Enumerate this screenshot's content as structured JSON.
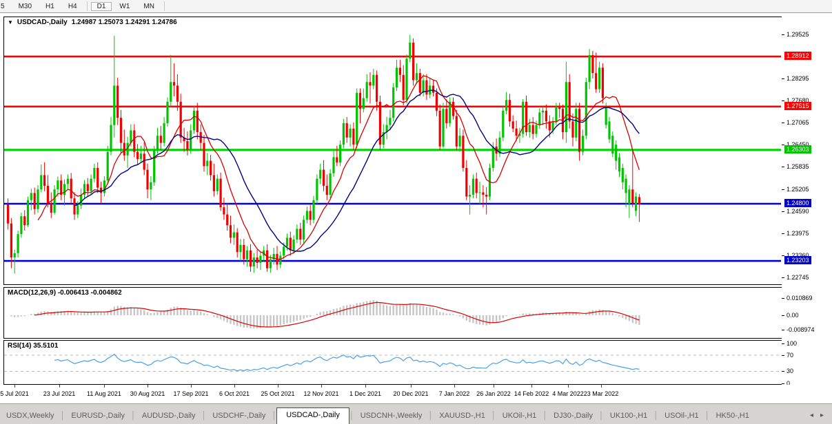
{
  "toolbar": {
    "buttons": [
      {
        "label": "5",
        "active": false,
        "partial": true
      },
      {
        "label": "M30",
        "active": false
      },
      {
        "label": "H1",
        "active": false
      },
      {
        "label": "H4",
        "active": false
      },
      {
        "label": "D1",
        "active": true
      },
      {
        "label": "W1",
        "active": false
      },
      {
        "label": "MN",
        "active": false
      }
    ]
  },
  "chart": {
    "dropdown_icon": "▼",
    "symbol_title": "USDCAD-,Daily",
    "ohlc": "1.24987 1.25073 1.24291 1.24786"
  },
  "indicators": {
    "macd_label": "MACD(12,26,9)",
    "macd_values": "-0.006413 -0.004862",
    "rsi_label": "RSI(14)",
    "rsi_value": "35.5101"
  },
  "axis": {
    "main_labels": [
      "1.29525",
      "1.28295",
      "1.27680",
      "1.27065",
      "1.26450",
      "1.25835",
      "1.25205",
      "1.24590",
      "1.23975",
      "1.23360",
      "1.22745"
    ],
    "macd_labels": [
      "0.010869",
      "0.00",
      "-0.008974"
    ],
    "rsi_labels": [
      "100",
      "70",
      "30",
      "0"
    ]
  },
  "levels": [
    {
      "label": "1.28912",
      "price": 1.28912,
      "color": "#ff0000",
      "width": 2.6
    },
    {
      "label": "1.27515",
      "price": 1.27515,
      "color": "#ff0000",
      "width": 2.6
    },
    {
      "label": "1.26303",
      "price": 1.26303,
      "color": "#00d400",
      "width": 3.2
    },
    {
      "label": "1.24800",
      "price": 1.248,
      "color": "#0000dc",
      "width": 2.6
    },
    {
      "label": "1.23203",
      "price": 1.23203,
      "color": "#0000dc",
      "width": 2.6
    }
  ],
  "dates": [
    "5 Jul 2021",
    "23 Jul 2021",
    "11 Aug 2021",
    "30 Aug 2021",
    "17 Sep 2021",
    "6 Oct 2021",
    "25 Oct 2021",
    "12 Nov 2021",
    "1 Dec 2021",
    "20 Dec 2021",
    "7 Jan 2022",
    "26 Jan 2022",
    "14 Feb 2022",
    "4 Mar 2022",
    "23 Mar 2022"
  ],
  "tabs": [
    {
      "label": "USDX,Weekly",
      "active": false
    },
    {
      "label": "EURUSD-,Daily",
      "active": false
    },
    {
      "label": "AUDUSD-,Daily",
      "active": false
    },
    {
      "label": "USDCHF-,Daily",
      "active": false
    },
    {
      "label": "USDCAD-,Daily",
      "active": true
    },
    {
      "label": "USDCNH-,Weekly",
      "active": false
    },
    {
      "label": "XAUUSD-,H1",
      "active": false
    },
    {
      "label": "UKOil-,H1",
      "active": false
    },
    {
      "label": "DJ30-,Daily",
      "active": false
    },
    {
      "label": "UK100-,H1",
      "active": false
    },
    {
      "label": "USOil-,H1",
      "active": false
    },
    {
      "label": "HK50-,H1",
      "active": false
    }
  ],
  "tab_arrows": {
    "left": "◂",
    "right": "▸"
  },
  "colors": {
    "bull": "#00c400",
    "bear": "#f20000",
    "ma_fast": "#d60000",
    "ma_slow": "#000080",
    "macd_hist": "#c6c6c6",
    "macd_signal": "#dd0000",
    "rsi_line": "#4aa0e8",
    "rsi_levels": "#bdbdbd",
    "badge_red": "#ff0000",
    "badge_green": "#00c400",
    "badge_blue": "#0000c8"
  },
  "chart_data": {
    "type": "candlestick",
    "symbol": "USDCAD-",
    "timeframe": "Daily",
    "title": "USDCAD-,Daily 1.24987 1.25073 1.24291 1.24786",
    "x_range": [
      "5 Jul 2021",
      "23 Mar 2022"
    ],
    "y_range": [
      1.2259,
      1.3001
    ],
    "horizontal_levels": [
      1.28912,
      1.27515,
      1.26303,
      1.248,
      1.23203
    ],
    "overlays": [
      {
        "name": "ma-fast",
        "period": 10,
        "color": "#d60000"
      },
      {
        "name": "ma-slow",
        "period": 21,
        "color": "#000080"
      }
    ],
    "macd": {
      "params": [
        12,
        26,
        9
      ],
      "current": -0.006413,
      "signal": -0.004862,
      "axis": [
        0.010869,
        0.0,
        -0.008974
      ]
    },
    "rsi": {
      "period": 14,
      "current": 35.5101,
      "levels": [
        70,
        30
      ],
      "axis": [
        100,
        70,
        30,
        0
      ]
    },
    "candles": [
      [
        1.2478,
        1.2495,
        1.2408,
        1.2425
      ],
      [
        1.2425,
        1.244,
        1.23,
        1.233
      ],
      [
        1.233,
        1.2352,
        1.2285,
        1.2342
      ],
      [
        1.2342,
        1.2405,
        1.233,
        1.2395
      ],
      [
        1.2395,
        1.2455,
        1.2385,
        1.2445
      ],
      [
        1.2445,
        1.2462,
        1.2405,
        1.242
      ],
      [
        1.242,
        1.25,
        1.2415,
        1.249
      ],
      [
        1.249,
        1.2522,
        1.2462,
        1.251
      ],
      [
        1.251,
        1.2525,
        1.245,
        1.2465
      ],
      [
        1.2465,
        1.2532,
        1.2455,
        1.252
      ],
      [
        1.252,
        1.259,
        1.2512,
        1.256
      ],
      [
        1.256,
        1.2596,
        1.2515,
        1.253
      ],
      [
        1.253,
        1.256,
        1.247,
        1.2482
      ],
      [
        1.2482,
        1.2512,
        1.244,
        1.2455
      ],
      [
        1.2455,
        1.2532,
        1.245,
        1.252
      ],
      [
        1.252,
        1.2556,
        1.25,
        1.2545
      ],
      [
        1.2545,
        1.2562,
        1.249,
        1.2505
      ],
      [
        1.2505,
        1.2548,
        1.2475,
        1.2535
      ],
      [
        1.2535,
        1.2562,
        1.252,
        1.255
      ],
      [
        1.255,
        1.2566,
        1.248,
        1.2495
      ],
      [
        1.2495,
        1.2512,
        1.2435,
        1.245
      ],
      [
        1.245,
        1.2487,
        1.244,
        1.2475
      ],
      [
        1.2475,
        1.2522,
        1.2465,
        1.2505
      ],
      [
        1.2505,
        1.2546,
        1.2495,
        1.2535
      ],
      [
        1.2535,
        1.2552,
        1.25,
        1.2515
      ],
      [
        1.2515,
        1.2562,
        1.2505,
        1.255
      ],
      [
        1.255,
        1.2592,
        1.254,
        1.258
      ],
      [
        1.258,
        1.2596,
        1.251,
        1.2525
      ],
      [
        1.2525,
        1.2542,
        1.248,
        1.251
      ],
      [
        1.251,
        1.2557,
        1.25,
        1.2545
      ],
      [
        1.2545,
        1.2642,
        1.2535,
        1.2625
      ],
      [
        1.2625,
        1.2722,
        1.2615,
        1.27
      ],
      [
        1.27,
        1.2949,
        1.2665,
        1.281
      ],
      [
        1.281,
        1.2832,
        1.27,
        1.272
      ],
      [
        1.272,
        1.2742,
        1.262,
        1.265
      ],
      [
        1.265,
        1.2687,
        1.26,
        1.2615
      ],
      [
        1.2615,
        1.2667,
        1.258,
        1.265
      ],
      [
        1.265,
        1.2702,
        1.264,
        1.2685
      ],
      [
        1.2685,
        1.2702,
        1.261,
        1.2625
      ],
      [
        1.2625,
        1.2647,
        1.259,
        1.2605
      ],
      [
        1.2605,
        1.2642,
        1.2595,
        1.262
      ],
      [
        1.262,
        1.2652,
        1.256,
        1.2575
      ],
      [
        1.2575,
        1.2592,
        1.2495,
        1.252
      ],
      [
        1.252,
        1.2557,
        1.249,
        1.254
      ],
      [
        1.254,
        1.2642,
        1.253,
        1.263
      ],
      [
        1.263,
        1.2692,
        1.262,
        1.267
      ],
      [
        1.267,
        1.2697,
        1.263,
        1.265
      ],
      [
        1.265,
        1.2722,
        1.264,
        1.2705
      ],
      [
        1.2705,
        1.2777,
        1.2695,
        1.2765
      ],
      [
        1.2765,
        1.2896,
        1.275,
        1.282
      ],
      [
        1.282,
        1.2872,
        1.278,
        1.281
      ],
      [
        1.281,
        1.2842,
        1.274,
        1.2765
      ],
      [
        1.2765,
        1.2787,
        1.265,
        1.2665
      ],
      [
        1.2665,
        1.2692,
        1.2625,
        1.2655
      ],
      [
        1.2655,
        1.2682,
        1.2615,
        1.263
      ],
      [
        1.263,
        1.2702,
        1.262,
        1.2685
      ],
      [
        1.2685,
        1.2752,
        1.2675,
        1.274
      ],
      [
        1.274,
        1.2762,
        1.266,
        1.268
      ],
      [
        1.268,
        1.2702,
        1.263,
        1.265
      ],
      [
        1.265,
        1.2672,
        1.257,
        1.2585
      ],
      [
        1.2585,
        1.2622,
        1.256,
        1.26
      ],
      [
        1.26,
        1.2617,
        1.2545,
        1.256
      ],
      [
        1.256,
        1.2592,
        1.25,
        1.2515
      ],
      [
        1.2515,
        1.2562,
        1.2505,
        1.255
      ],
      [
        1.255,
        1.2567,
        1.246,
        1.247
      ],
      [
        1.247,
        1.2497,
        1.2435,
        1.245
      ],
      [
        1.245,
        1.2482,
        1.2405,
        1.242
      ],
      [
        1.242,
        1.2447,
        1.237,
        1.2385
      ],
      [
        1.2385,
        1.2422,
        1.2365,
        1.24
      ],
      [
        1.24,
        1.2412,
        1.233,
        1.2345
      ],
      [
        1.2345,
        1.2382,
        1.232,
        1.2365
      ],
      [
        1.2365,
        1.2382,
        1.231,
        1.2325
      ],
      [
        1.2325,
        1.2362,
        1.2305,
        1.235
      ],
      [
        1.235,
        1.2367,
        1.229,
        1.2305
      ],
      [
        1.2305,
        1.2342,
        1.2287,
        1.233
      ],
      [
        1.233,
        1.2352,
        1.23,
        1.2315
      ],
      [
        1.2315,
        1.2347,
        1.2295,
        1.2335
      ],
      [
        1.2335,
        1.2362,
        1.232,
        1.235
      ],
      [
        1.235,
        1.2367,
        1.229,
        1.23
      ],
      [
        1.23,
        1.2337,
        1.2287,
        1.2325
      ],
      [
        1.2325,
        1.2357,
        1.231,
        1.234
      ],
      [
        1.234,
        1.2362,
        1.2295,
        1.231
      ],
      [
        1.231,
        1.2347,
        1.23,
        1.2335
      ],
      [
        1.2335,
        1.2372,
        1.2325,
        1.236
      ],
      [
        1.236,
        1.2397,
        1.235,
        1.2385
      ],
      [
        1.2385,
        1.2402,
        1.2335,
        1.235
      ],
      [
        1.235,
        1.2392,
        1.234,
        1.238
      ],
      [
        1.238,
        1.2422,
        1.237,
        1.241
      ],
      [
        1.241,
        1.2427,
        1.2365,
        1.238
      ],
      [
        1.238,
        1.2447,
        1.237,
        1.2435
      ],
      [
        1.2435,
        1.2472,
        1.2425,
        1.246
      ],
      [
        1.246,
        1.2477,
        1.242,
        1.2435
      ],
      [
        1.2435,
        1.2502,
        1.2425,
        1.249
      ],
      [
        1.249,
        1.2562,
        1.248,
        1.255
      ],
      [
        1.255,
        1.2592,
        1.2535,
        1.2575
      ],
      [
        1.2575,
        1.2602,
        1.2515,
        1.253
      ],
      [
        1.253,
        1.2562,
        1.249,
        1.2505
      ],
      [
        1.2505,
        1.2577,
        1.2495,
        1.2565
      ],
      [
        1.2565,
        1.2627,
        1.2555,
        1.261
      ],
      [
        1.261,
        1.2642,
        1.2585,
        1.2595
      ],
      [
        1.2595,
        1.2657,
        1.2585,
        1.2645
      ],
      [
        1.2645,
        1.2717,
        1.2635,
        1.2705
      ],
      [
        1.2705,
        1.2722,
        1.265,
        1.2665
      ],
      [
        1.2665,
        1.2702,
        1.264,
        1.269
      ],
      [
        1.269,
        1.2707,
        1.263,
        1.2645
      ],
      [
        1.2645,
        1.2802,
        1.2635,
        1.279
      ],
      [
        1.279,
        1.2802,
        1.2705,
        1.2745
      ],
      [
        1.2745,
        1.2802,
        1.2735,
        1.2775
      ],
      [
        1.2775,
        1.2842,
        1.2765,
        1.282
      ],
      [
        1.282,
        1.2847,
        1.276,
        1.281
      ],
      [
        1.281,
        1.2857,
        1.28,
        1.284
      ],
      [
        1.284,
        1.2852,
        1.274,
        1.2765
      ],
      [
        1.2765,
        1.2782,
        1.263,
        1.2645
      ],
      [
        1.2645,
        1.2702,
        1.2635,
        1.268
      ],
      [
        1.268,
        1.2722,
        1.266,
        1.27
      ],
      [
        1.27,
        1.2742,
        1.2685,
        1.272
      ],
      [
        1.272,
        1.2817,
        1.271,
        1.2805
      ],
      [
        1.2805,
        1.2882,
        1.2795,
        1.286
      ],
      [
        1.286,
        1.2882,
        1.282,
        1.284
      ],
      [
        1.284,
        1.2867,
        1.2755,
        1.277
      ],
      [
        1.277,
        1.2897,
        1.276,
        1.2885
      ],
      [
        1.2885,
        1.2952,
        1.2875,
        1.293
      ],
      [
        1.293,
        1.2942,
        1.281,
        1.2825
      ],
      [
        1.2825,
        1.2872,
        1.2815,
        1.2845
      ],
      [
        1.2845,
        1.2857,
        1.278,
        1.279
      ],
      [
        1.279,
        1.2842,
        1.278,
        1.2825
      ],
      [
        1.2825,
        1.2842,
        1.277,
        1.2785
      ],
      [
        1.2785,
        1.2832,
        1.2775,
        1.281
      ],
      [
        1.281,
        1.2827,
        1.278,
        1.279
      ],
      [
        1.279,
        1.2802,
        1.2725,
        1.274
      ],
      [
        1.274,
        1.2757,
        1.263,
        1.264
      ],
      [
        1.264,
        1.2762,
        1.2635,
        1.2745
      ],
      [
        1.2745,
        1.2772,
        1.269,
        1.2705
      ],
      [
        1.2705,
        1.2777,
        1.2695,
        1.2765
      ],
      [
        1.2765,
        1.2777,
        1.2715,
        1.2725
      ],
      [
        1.2725,
        1.2742,
        1.263,
        1.264
      ],
      [
        1.264,
        1.2692,
        1.2625,
        1.267
      ],
      [
        1.267,
        1.2687,
        1.257,
        1.258
      ],
      [
        1.258,
        1.2602,
        1.249,
        1.25
      ],
      [
        1.25,
        1.2532,
        1.245,
        1.2505
      ],
      [
        1.2505,
        1.2562,
        1.2495,
        1.255
      ],
      [
        1.255,
        1.2567,
        1.2495,
        1.251
      ],
      [
        1.251,
        1.2542,
        1.248,
        1.2512
      ],
      [
        1.2512,
        1.2532,
        1.247,
        1.2505
      ],
      [
        1.2505,
        1.2527,
        1.245,
        1.25
      ],
      [
        1.25,
        1.2592,
        1.249,
        1.258
      ],
      [
        1.258,
        1.2652,
        1.257,
        1.264
      ],
      [
        1.264,
        1.2662,
        1.26,
        1.262
      ],
      [
        1.262,
        1.2682,
        1.261,
        1.2665
      ],
      [
        1.2665,
        1.2752,
        1.2655,
        1.274
      ],
      [
        1.274,
        1.2792,
        1.273,
        1.277
      ],
      [
        1.277,
        1.2787,
        1.2695,
        1.271
      ],
      [
        1.271,
        1.2727,
        1.268,
        1.269
      ],
      [
        1.269,
        1.2712,
        1.2655,
        1.267
      ],
      [
        1.267,
        1.2692,
        1.265,
        1.2675
      ],
      [
        1.2675,
        1.2772,
        1.2665,
        1.2765
      ],
      [
        1.2765,
        1.2782,
        1.267,
        1.268
      ],
      [
        1.268,
        1.2717,
        1.2665,
        1.27
      ],
      [
        1.27,
        1.2722,
        1.266,
        1.2675
      ],
      [
        1.2675,
        1.2712,
        1.2665,
        1.27
      ],
      [
        1.27,
        1.2747,
        1.269,
        1.2735
      ],
      [
        1.2735,
        1.2752,
        1.27,
        1.274
      ],
      [
        1.274,
        1.2757,
        1.269,
        1.271
      ],
      [
        1.271,
        1.2727,
        1.2665,
        1.2685
      ],
      [
        1.2685,
        1.2722,
        1.2675,
        1.271
      ],
      [
        1.271,
        1.2762,
        1.27,
        1.275
      ],
      [
        1.275,
        1.2762,
        1.272,
        1.2745
      ],
      [
        1.2745,
        1.2757,
        1.266,
        1.268
      ],
      [
        1.268,
        1.2877,
        1.265,
        1.282
      ],
      [
        1.282,
        1.2842,
        1.269,
        1.271
      ],
      [
        1.271,
        1.2732,
        1.264,
        1.2665
      ],
      [
        1.2665,
        1.2762,
        1.2655,
        1.2745
      ],
      [
        1.2745,
        1.2762,
        1.26,
        1.2625
      ],
      [
        1.2625,
        1.2687,
        1.2615,
        1.267
      ],
      [
        1.267,
        1.2832,
        1.266,
        1.282
      ],
      [
        1.282,
        1.2912,
        1.28,
        1.2895
      ],
      [
        1.2895,
        1.2907,
        1.283,
        1.2845
      ],
      [
        1.2845,
        1.2902,
        1.279,
        1.28
      ],
      [
        1.28,
        1.2877,
        1.279,
        1.286
      ],
      [
        1.286,
        1.2872,
        1.276,
        1.2775
      ],
      [
        1.27,
        1.2762,
        1.269,
        1.275
      ],
      [
        1.266,
        1.2722,
        1.265,
        1.271
      ],
      [
        1.262,
        1.2682,
        1.261,
        1.267
      ],
      [
        1.26,
        1.2657,
        1.2575,
        1.2645
      ],
      [
        1.257,
        1.2622,
        1.2555,
        1.261
      ],
      [
        1.254,
        1.2592,
        1.252,
        1.258
      ],
      [
        1.251,
        1.2562,
        1.247,
        1.255
      ],
      [
        1.248,
        1.2532,
        1.244,
        1.252
      ],
      [
        1.252,
        1.2632,
        1.247,
        1.2482
      ],
      [
        1.246,
        1.2512,
        1.2445,
        1.25
      ],
      [
        1.24987,
        1.25073,
        1.24291,
        1.24786
      ]
    ]
  }
}
